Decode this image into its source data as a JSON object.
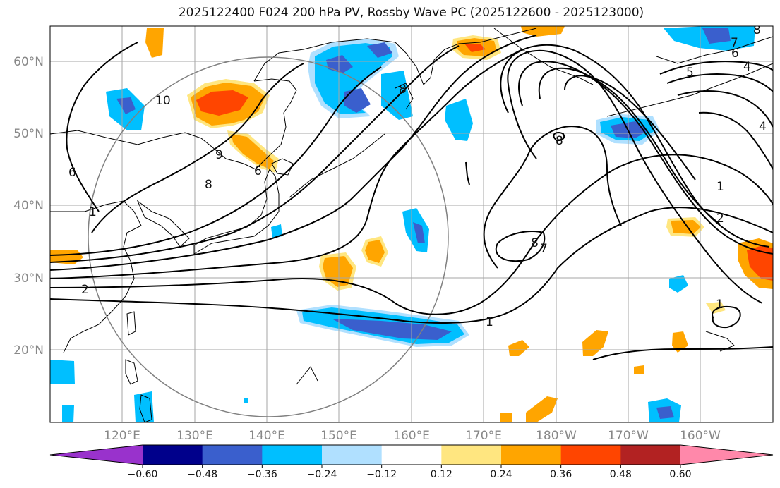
{
  "title": "2025122400 F024 200 hPa PV, Rossby Wave PC (2025122600 - 2025123000)",
  "map": {
    "region": "North Pacific",
    "lat_ticks": [
      "60°N",
      "50°N",
      "40°N",
      "30°N",
      "20°N"
    ],
    "lon_ticks": [
      "120°E",
      "130°E",
      "140°E",
      "150°E",
      "160°E",
      "170°E",
      "180°W",
      "170°W",
      "160°W"
    ],
    "contour_labels": [
      "1",
      "1",
      "1",
      "1",
      "2",
      "2",
      "4",
      "4",
      "5",
      "6",
      "6",
      "6",
      "7",
      "7",
      "8",
      "8",
      "8",
      "8",
      "8",
      "9",
      "10"
    ]
  },
  "colorbar": {
    "colors": [
      "#9932cc",
      "#00008b",
      "#3a5fcd",
      "#00bfff",
      "#b0e0ff",
      "#ffffff",
      "#ffe680",
      "#ffa500",
      "#ff4500",
      "#b22222",
      "#ff88aa"
    ],
    "labels": [
      "−0.60",
      "−0.48",
      "−0.36",
      "−0.24",
      "−0.12",
      "0.12",
      "0.24",
      "0.36",
      "0.48",
      "0.60"
    ]
  }
}
